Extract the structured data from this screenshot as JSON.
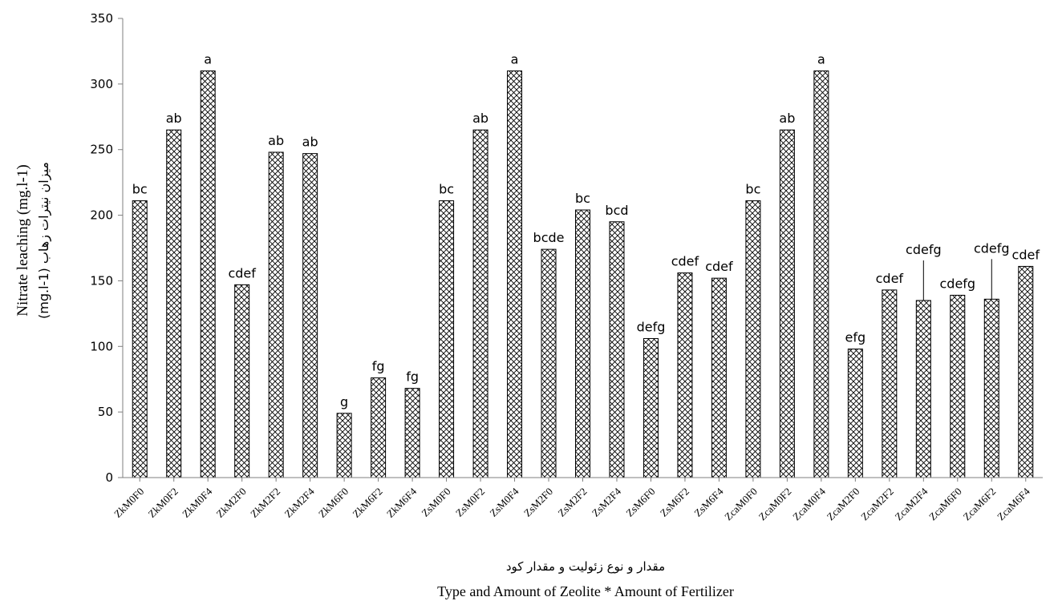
{
  "chart_data": {
    "type": "bar",
    "categories": [
      "ZkM0F0",
      "ZkM0F2",
      "ZkM0F4",
      "ZkM2F0",
      "ZkM2F2",
      "ZkM2F4",
      "ZkM6F0",
      "ZkM6F2",
      "ZkM6F4",
      "ZsM0F0",
      "ZsM0F2",
      "ZsM0F4",
      "ZsM2F0",
      "ZsM2F2",
      "ZsM2F4",
      "ZsM6F0",
      "ZsM6F2",
      "ZsM6F4",
      "ZcaM0F0",
      "ZcaM0F2",
      "ZcaM0F4",
      "ZcaM2F0",
      "ZcaM2F2",
      "ZcaM2F4",
      "ZcaM6F0",
      "ZcaM6F2",
      "ZcaM6F4"
    ],
    "values": [
      211,
      265,
      310,
      147,
      248,
      247,
      49,
      76,
      68,
      211,
      265,
      310,
      174,
      204,
      195,
      106,
      156,
      152,
      211,
      265,
      310,
      98,
      143,
      135,
      139,
      136,
      161
    ],
    "labels": [
      "bc",
      "ab",
      "a",
      "cdef",
      "ab",
      "ab",
      "g",
      "fg",
      "fg",
      "bc",
      "ab",
      "a",
      "bcde",
      "bc",
      "bcd",
      "defg",
      "cdef",
      "cdef",
      "bc",
      "ab",
      "a",
      "efg",
      "cdef",
      "cdefg",
      "cdefg",
      "cdefg",
      "cdef"
    ],
    "yticks": [
      "0",
      "50",
      "100",
      "150",
      "200",
      "250",
      "300",
      "350"
    ],
    "ylim": [
      0,
      350
    ],
    "ylabel": "Nitrate leaching (mg.l-1)",
    "ylabel_fa": "میزان نیترات زهاب (mg.l-1)",
    "xlabel_fa": "مقدار و نوع زئولیت و مقدار کود",
    "xlabel": "Type and Amount of Zeolite * Amount of Fertilizer",
    "grid": false,
    "legend": "none",
    "bar_fill": "#ffffff",
    "bar_stroke": "#000000",
    "pattern": "crosshatch"
  }
}
